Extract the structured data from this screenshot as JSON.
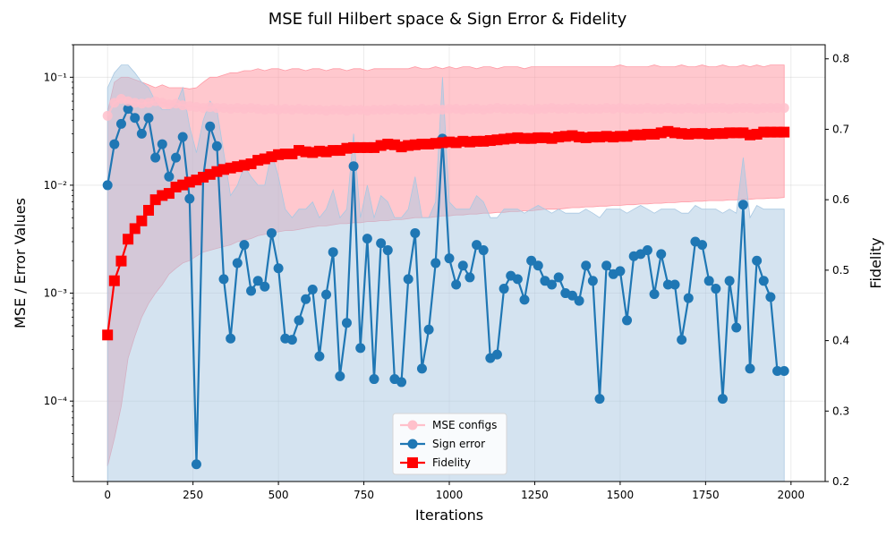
{
  "chart_data": {
    "type": "line",
    "title": "MSE full Hilbert space & Sign Error & Fidelity",
    "xlabel": "Iterations",
    "ylabel_left": "MSE / Error Values",
    "ylabel_right": "Fidelity",
    "xlim": [
      -100,
      2100
    ],
    "ylim_left": [
      1.8e-05,
      0.2
    ],
    "ylim_right": [
      0.2,
      0.82
    ],
    "yscale_left": "log",
    "x_ticks": [
      0,
      250,
      500,
      750,
      1000,
      1250,
      1500,
      1750,
      2000
    ],
    "y_left_ticks": [
      0.0001,
      0.001,
      0.01,
      0.1
    ],
    "y_left_tick_labels": [
      "10⁻⁴",
      "10⁻³",
      "10⁻²",
      "10⁻¹"
    ],
    "y_right_ticks": [
      0.2,
      0.3,
      0.4,
      0.5,
      0.6,
      0.7,
      0.8
    ],
    "y_right_tick_labels": [
      "0.2",
      "0.3",
      "0.4",
      "0.5",
      "0.6",
      "0.7",
      "0.8"
    ],
    "grid": true,
    "legend_position": "bottom-center",
    "x": [
      0,
      20,
      40,
      60,
      80,
      100,
      120,
      140,
      160,
      180,
      200,
      220,
      240,
      260,
      280,
      300,
      320,
      340,
      360,
      380,
      400,
      420,
      440,
      460,
      480,
      500,
      520,
      540,
      560,
      580,
      600,
      620,
      640,
      660,
      680,
      700,
      720,
      740,
      760,
      780,
      800,
      820,
      840,
      860,
      880,
      900,
      920,
      940,
      960,
      980,
      1000,
      1020,
      1040,
      1060,
      1080,
      1100,
      1120,
      1140,
      1160,
      1180,
      1200,
      1220,
      1240,
      1260,
      1280,
      1300,
      1320,
      1340,
      1360,
      1380,
      1400,
      1420,
      1440,
      1460,
      1480,
      1500,
      1520,
      1540,
      1560,
      1580,
      1600,
      1620,
      1640,
      1660,
      1680,
      1700,
      1720,
      1740,
      1760,
      1780,
      1800,
      1820,
      1840,
      1860,
      1880,
      1900,
      1920,
      1940,
      1960,
      1980
    ],
    "series": [
      {
        "name": "MSE configs",
        "axis": "left",
        "color": "#ffc0cb",
        "band_color": "#ff9aa5",
        "values": [
          0.044,
          0.058,
          0.063,
          0.06,
          0.058,
          0.057,
          0.058,
          0.06,
          0.058,
          0.056,
          0.057,
          0.055,
          0.054,
          0.053,
          0.052,
          0.053,
          0.052,
          0.052,
          0.051,
          0.052,
          0.051,
          0.052,
          0.051,
          0.05,
          0.051,
          0.05,
          0.051,
          0.05,
          0.051,
          0.05,
          0.05,
          0.05,
          0.049,
          0.05,
          0.05,
          0.049,
          0.05,
          0.05,
          0.049,
          0.05,
          0.05,
          0.05,
          0.051,
          0.05,
          0.05,
          0.05,
          0.051,
          0.05,
          0.051,
          0.05,
          0.051,
          0.051,
          0.05,
          0.051,
          0.051,
          0.05,
          0.051,
          0.052,
          0.051,
          0.051,
          0.051,
          0.051,
          0.05,
          0.051,
          0.051,
          0.052,
          0.051,
          0.051,
          0.052,
          0.051,
          0.051,
          0.051,
          0.051,
          0.052,
          0.051,
          0.052,
          0.051,
          0.051,
          0.051,
          0.052,
          0.051,
          0.051,
          0.052,
          0.051,
          0.051,
          0.052,
          0.051,
          0.051,
          0.052,
          0.052,
          0.052,
          0.051,
          0.052,
          0.052,
          0.052,
          0.051,
          0.052,
          0.052,
          0.052,
          0.052
        ],
        "band_upper": [
          0.048,
          0.09,
          0.1,
          0.1,
          0.095,
          0.09,
          0.085,
          0.08,
          0.085,
          0.08,
          0.08,
          0.08,
          0.078,
          0.08,
          0.09,
          0.1,
          0.1,
          0.105,
          0.11,
          0.11,
          0.115,
          0.115,
          0.12,
          0.115,
          0.12,
          0.12,
          0.115,
          0.12,
          0.12,
          0.115,
          0.12,
          0.12,
          0.115,
          0.12,
          0.12,
          0.115,
          0.12,
          0.12,
          0.115,
          0.12,
          0.12,
          0.12,
          0.12,
          0.12,
          0.12,
          0.125,
          0.12,
          0.12,
          0.125,
          0.12,
          0.125,
          0.12,
          0.125,
          0.125,
          0.12,
          0.125,
          0.125,
          0.12,
          0.125,
          0.125,
          0.125,
          0.12,
          0.125,
          0.125,
          0.125,
          0.125,
          0.125,
          0.125,
          0.125,
          0.125,
          0.125,
          0.125,
          0.125,
          0.125,
          0.125,
          0.13,
          0.125,
          0.125,
          0.125,
          0.125,
          0.13,
          0.125,
          0.125,
          0.125,
          0.13,
          0.125,
          0.125,
          0.13,
          0.125,
          0.125,
          0.13,
          0.125,
          0.125,
          0.13,
          0.125,
          0.13,
          0.125,
          0.13,
          0.13,
          0.13
        ],
        "band_lower": [
          2.5e-05,
          4.5e-05,
          9e-05,
          0.00025,
          0.0004,
          0.0006,
          0.0008,
          0.001,
          0.0012,
          0.0015,
          0.0017,
          0.0019,
          0.002,
          0.0022,
          0.0024,
          0.0025,
          0.0026,
          0.0027,
          0.0028,
          0.003,
          0.0031,
          0.0032,
          0.0034,
          0.0035,
          0.0036,
          0.0037,
          0.0038,
          0.0038,
          0.0039,
          0.004,
          0.0041,
          0.0042,
          0.0042,
          0.0043,
          0.0044,
          0.0044,
          0.0045,
          0.0045,
          0.0046,
          0.0046,
          0.0047,
          0.0047,
          0.0048,
          0.0048,
          0.0049,
          0.005,
          0.005,
          0.005,
          0.0051,
          0.0052,
          0.0052,
          0.0053,
          0.0053,
          0.0054,
          0.0054,
          0.0055,
          0.0055,
          0.0056,
          0.0056,
          0.0057,
          0.0057,
          0.0058,
          0.0058,
          0.0059,
          0.006,
          0.006,
          0.006,
          0.0061,
          0.0062,
          0.0062,
          0.0063,
          0.0063,
          0.0064,
          0.0064,
          0.0065,
          0.0065,
          0.0066,
          0.0066,
          0.0067,
          0.0067,
          0.0068,
          0.0068,
          0.0069,
          0.0069,
          0.007,
          0.007,
          0.0071,
          0.0071,
          0.0072,
          0.0072,
          0.0072,
          0.0073,
          0.0073,
          0.0074,
          0.0074,
          0.0075,
          0.0075,
          0.0076,
          0.0076,
          0.0077
        ]
      },
      {
        "name": "Sign error",
        "axis": "left",
        "color": "#1f77b4",
        "band_color": "#a9c8e2",
        "values": [
          0.01,
          0.024,
          0.037,
          0.051,
          0.042,
          0.03,
          0.042,
          0.018,
          0.024,
          0.012,
          0.018,
          0.028,
          0.0075,
          2.6e-05,
          0.012,
          0.035,
          0.023,
          0.00135,
          0.00038,
          0.0019,
          0.0028,
          0.00105,
          0.0013,
          0.00115,
          0.0036,
          0.0017,
          0.00038,
          0.00037,
          0.00056,
          0.00088,
          0.00108,
          0.00026,
          0.00097,
          0.0024,
          0.00017,
          0.00053,
          0.015,
          0.00031,
          0.0032,
          0.00016,
          0.0029,
          0.0025,
          0.00016,
          0.00015,
          0.00135,
          0.0036,
          0.0002,
          0.00046,
          0.0019,
          0.027,
          0.0021,
          0.0012,
          0.0018,
          0.0014,
          0.0028,
          0.0025,
          0.00025,
          0.00027,
          0.0011,
          0.00145,
          0.00135,
          0.00087,
          0.002,
          0.0018,
          0.0013,
          0.0012,
          0.0014,
          0.001,
          0.00095,
          0.00085,
          0.0018,
          0.0013,
          0.000105,
          0.0018,
          0.0015,
          0.0016,
          0.00056,
          0.0022,
          0.0023,
          0.0025,
          0.00098,
          0.0023,
          0.0012,
          0.0012,
          0.00037,
          0.0009,
          0.003,
          0.0028,
          0.0013,
          0.0011,
          0.000105,
          0.0013,
          0.00048,
          0.0066,
          0.0002,
          0.002,
          0.0013,
          0.00092,
          0.00019,
          0.00019
        ],
        "band_upper": [
          0.08,
          0.11,
          0.13,
          0.13,
          0.11,
          0.09,
          0.08,
          0.06,
          0.05,
          0.05,
          0.055,
          0.08,
          0.035,
          0.02,
          0.04,
          0.06,
          0.05,
          0.02,
          0.008,
          0.01,
          0.015,
          0.012,
          0.01,
          0.01,
          0.02,
          0.012,
          0.006,
          0.005,
          0.006,
          0.006,
          0.007,
          0.005,
          0.006,
          0.009,
          0.005,
          0.006,
          0.03,
          0.005,
          0.01,
          0.005,
          0.008,
          0.007,
          0.005,
          0.005,
          0.006,
          0.012,
          0.005,
          0.005,
          0.007,
          0.1,
          0.007,
          0.006,
          0.006,
          0.006,
          0.008,
          0.007,
          0.005,
          0.005,
          0.006,
          0.006,
          0.006,
          0.0055,
          0.006,
          0.0065,
          0.006,
          0.0055,
          0.006,
          0.0055,
          0.0055,
          0.0055,
          0.006,
          0.0055,
          0.005,
          0.006,
          0.006,
          0.006,
          0.0055,
          0.006,
          0.0065,
          0.006,
          0.0055,
          0.006,
          0.006,
          0.006,
          0.0055,
          0.0055,
          0.0065,
          0.006,
          0.006,
          0.006,
          0.0055,
          0.006,
          0.0055,
          0.018,
          0.005,
          0.0065,
          0.006,
          0.006,
          0.006,
          0.006
        ],
        "band_lower": [
          1.8e-05,
          1.8e-05,
          1.8e-05,
          1.8e-05,
          1.8e-05,
          1.8e-05,
          1.8e-05,
          1.8e-05,
          1.8e-05,
          1.8e-05,
          1.8e-05,
          1.8e-05,
          1.8e-05,
          1.8e-05,
          1.8e-05,
          1.8e-05,
          1.8e-05,
          1.8e-05,
          1.8e-05,
          1.8e-05,
          1.8e-05,
          1.8e-05,
          1.8e-05,
          1.8e-05,
          1.8e-05,
          1.8e-05,
          1.8e-05,
          1.8e-05,
          1.8e-05,
          1.8e-05,
          1.8e-05,
          1.8e-05,
          1.8e-05,
          1.8e-05,
          1.8e-05,
          1.8e-05,
          1.8e-05,
          1.8e-05,
          1.8e-05,
          1.8e-05,
          1.8e-05,
          1.8e-05,
          1.8e-05,
          1.8e-05,
          1.8e-05,
          1.8e-05,
          1.8e-05,
          1.8e-05,
          1.8e-05,
          1.8e-05,
          1.8e-05,
          1.8e-05,
          1.8e-05,
          1.8e-05,
          1.8e-05,
          1.8e-05,
          1.8e-05,
          1.8e-05,
          1.8e-05,
          1.8e-05,
          1.8e-05,
          1.8e-05,
          1.8e-05,
          1.8e-05,
          1.8e-05,
          1.8e-05,
          1.8e-05,
          1.8e-05,
          1.8e-05,
          1.8e-05,
          1.8e-05,
          1.8e-05,
          1.8e-05,
          1.8e-05,
          1.8e-05,
          1.8e-05,
          1.8e-05,
          1.8e-05,
          1.8e-05,
          1.8e-05,
          1.8e-05,
          1.8e-05,
          1.8e-05,
          1.8e-05,
          1.8e-05,
          1.8e-05,
          1.8e-05,
          1.8e-05,
          1.8e-05,
          1.8e-05,
          1.8e-05,
          1.8e-05,
          1.8e-05,
          1.8e-05,
          1.8e-05,
          1.8e-05,
          1.8e-05,
          1.8e-05,
          1.8e-05,
          1.8e-05
        ]
      },
      {
        "name": "Fidelity",
        "axis": "right",
        "color": "#ff0000",
        "values": [
          0.408,
          0.485,
          0.513,
          0.544,
          0.559,
          0.57,
          0.585,
          0.6,
          0.606,
          0.609,
          0.618,
          0.621,
          0.625,
          0.628,
          0.632,
          0.636,
          0.64,
          0.643,
          0.645,
          0.647,
          0.649,
          0.651,
          0.656,
          0.658,
          0.661,
          0.664,
          0.665,
          0.665,
          0.67,
          0.668,
          0.667,
          0.669,
          0.668,
          0.67,
          0.67,
          0.673,
          0.674,
          0.674,
          0.674,
          0.674,
          0.677,
          0.679,
          0.678,
          0.675,
          0.677,
          0.678,
          0.679,
          0.679,
          0.68,
          0.681,
          0.682,
          0.681,
          0.683,
          0.682,
          0.683,
          0.683,
          0.684,
          0.685,
          0.686,
          0.687,
          0.688,
          0.687,
          0.687,
          0.688,
          0.688,
          0.687,
          0.689,
          0.69,
          0.691,
          0.689,
          0.688,
          0.689,
          0.689,
          0.69,
          0.689,
          0.69,
          0.69,
          0.692,
          0.692,
          0.693,
          0.693,
          0.695,
          0.697,
          0.695,
          0.694,
          0.693,
          0.694,
          0.694,
          0.693,
          0.694,
          0.694,
          0.695,
          0.695,
          0.695,
          0.692,
          0.693,
          0.696,
          0.696,
          0.696,
          0.696
        ]
      }
    ]
  }
}
